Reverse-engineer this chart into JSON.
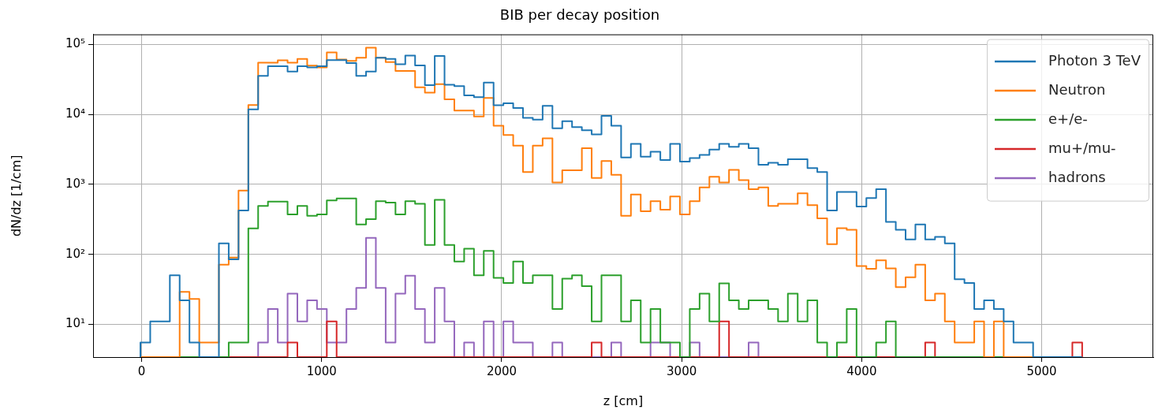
{
  "chart_data": {
    "type": "histogram",
    "title": "BIB per decay position",
    "xlabel": "z [cm]",
    "ylabel": "dN/dz [1/cm]",
    "bins": [
      -7,
      47.5,
      102,
      156.5,
      211,
      265.5,
      320,
      374.5,
      429,
      483.5,
      538,
      592.5,
      647,
      701.5,
      756,
      810.5,
      865,
      919.5,
      974,
      1028.5,
      1083,
      1137.5,
      1192,
      1246.5,
      1301,
      1355.5,
      1410,
      1464.5,
      1519,
      1573.5,
      1628,
      1682.5,
      1737,
      1791.5,
      1846,
      1900.5,
      1955,
      2009.5,
      2064,
      2118.5,
      2173,
      2227.5,
      2282,
      2336.5,
      2391,
      2445.5,
      2500,
      2554.5,
      2609,
      2663.5,
      2718,
      2772.5,
      2827,
      2881.5,
      2936,
      2990.5,
      3045,
      3099.5,
      3154,
      3208.5,
      3263,
      3317.5,
      3372,
      3426.5,
      3481,
      3535.5,
      3590,
      3644.5,
      3699,
      3753.5,
      3808,
      3862.5,
      3917,
      3971.5,
      4026,
      4080.5,
      4135,
      4189.5,
      4244,
      4298.5,
      4353,
      4407.5,
      4462,
      4516.5,
      4571,
      4625.5,
      4680,
      4734.5,
      4789,
      4843.5,
      4898,
      4952.5,
      5007,
      5061.5,
      5116,
      5170.5,
      5225
    ],
    "series": [
      {
        "name": "Photon 3 TeV",
        "color": "#1f77b4",
        "values": [
          5.5,
          11,
          11,
          50,
          22,
          5.5,
          null,
          null,
          143,
          85,
          424,
          11800,
          35400,
          48900,
          48900,
          41000,
          48900,
          46800,
          48900,
          59700,
          59700,
          54200,
          35400,
          41000,
          64600,
          61800,
          51900,
          69200,
          50100,
          26100,
          68100,
          26500,
          25400,
          18700,
          17600,
          28400,
          13500,
          14400,
          12300,
          8940,
          8410,
          13200,
          6310,
          7980,
          6590,
          5930,
          5160,
          9500,
          6880,
          2420,
          3800,
          2480,
          2930,
          2220,
          3800,
          2120,
          2380,
          2640,
          3140,
          3800,
          3430,
          3800,
          3280,
          1910,
          2030,
          1910,
          2280,
          2280,
          1710,
          1500,
          424,
          780,
          780,
          483,
          638,
          851,
          291,
          224,
          163,
          267,
          163,
          177,
          143,
          44,
          39,
          16.5,
          22,
          16.5,
          11,
          5.5,
          5.5,
          null,
          null,
          null,
          null,
          null
        ]
      },
      {
        "name": "Neutron",
        "color": "#ff7f0e",
        "values": [
          null,
          null,
          null,
          null,
          29,
          23,
          5.5,
          5.5,
          71,
          90,
          815,
          13600,
          54700,
          54700,
          59200,
          54700,
          61800,
          49800,
          46800,
          76900,
          60700,
          58200,
          64600,
          89900,
          64600,
          55700,
          41800,
          41800,
          24300,
          20500,
          27000,
          16400,
          11300,
          11300,
          9330,
          17200,
          6880,
          5070,
          3580,
          1500,
          3580,
          4530,
          1060,
          1590,
          1590,
          3280,
          1230,
          2160,
          1370,
          356,
          714,
          413,
          574,
          435,
          672,
          372,
          574,
          903,
          1280,
          1060,
          1610,
          1150,
          851,
          903,
          491,
          526,
          526,
          746,
          505,
          326,
          140,
          236,
          224,
          68,
          62,
          82,
          63,
          34,
          47,
          71,
          22,
          27.5,
          11,
          5.5,
          5.5,
          11,
          null,
          11,
          null,
          null,
          null,
          null,
          null,
          null,
          null,
          null
        ]
      },
      {
        "name": "e+/e-",
        "color": "#2ca02c",
        "values": [
          null,
          null,
          null,
          null,
          null,
          null,
          null,
          null,
          null,
          5.5,
          5.5,
          234,
          491,
          565,
          565,
          372,
          491,
          356,
          372,
          590,
          627,
          627,
          267,
          318,
          574,
          550,
          372,
          574,
          526,
          136,
          600,
          136,
          79,
          120,
          50,
          112,
          46,
          39,
          79,
          39,
          50,
          50,
          16.5,
          45,
          50,
          35,
          11,
          50,
          50,
          11,
          22,
          5.5,
          16.5,
          5.5,
          5.5,
          null,
          16.5,
          27.5,
          11,
          38.5,
          22,
          16.5,
          22,
          22,
          16.5,
          11,
          27.5,
          11,
          22,
          5.5,
          null,
          5.5,
          16.5,
          null,
          null,
          5.5,
          11,
          null,
          null,
          null,
          null,
          null,
          null,
          null,
          null,
          null,
          null,
          null,
          null,
          null,
          null,
          null,
          null,
          null,
          null,
          null
        ]
      },
      {
        "name": "mu+/mu-",
        "color": "#d62728",
        "values": [
          null,
          null,
          null,
          null,
          null,
          null,
          null,
          null,
          null,
          null,
          null,
          null,
          null,
          null,
          null,
          5.5,
          null,
          null,
          null,
          11,
          null,
          null,
          null,
          null,
          null,
          null,
          null,
          null,
          null,
          null,
          null,
          null,
          null,
          null,
          null,
          null,
          null,
          null,
          null,
          null,
          null,
          null,
          null,
          null,
          null,
          null,
          5.5,
          null,
          null,
          null,
          null,
          null,
          null,
          null,
          null,
          null,
          null,
          null,
          null,
          11,
          null,
          null,
          null,
          null,
          null,
          null,
          null,
          null,
          null,
          null,
          null,
          null,
          null,
          null,
          null,
          null,
          null,
          null,
          null,
          null,
          5.5,
          null,
          null,
          null,
          null,
          null,
          null,
          null,
          null,
          null,
          null,
          null,
          null,
          null,
          null,
          5.5
        ]
      },
      {
        "name": "hadrons",
        "color": "#9467bd",
        "values": [
          null,
          null,
          null,
          null,
          null,
          null,
          null,
          null,
          null,
          null,
          null,
          null,
          5.5,
          16.5,
          5.5,
          27.5,
          11,
          22,
          16.5,
          5.5,
          5.5,
          16.5,
          33,
          172,
          33,
          5.5,
          27.5,
          49.5,
          16.5,
          5.5,
          33,
          11,
          null,
          5.5,
          null,
          11,
          null,
          11,
          5.5,
          5.5,
          null,
          null,
          5.5,
          null,
          null,
          null,
          null,
          null,
          5.5,
          null,
          null,
          null,
          5.5,
          5.5,
          null,
          null,
          5.5,
          null,
          null,
          null,
          null,
          null,
          5.5,
          null,
          null,
          null,
          null,
          null,
          null,
          null,
          null,
          null,
          null,
          null,
          null,
          null,
          null,
          null,
          null,
          null,
          null,
          null,
          null,
          null,
          null,
          null,
          null,
          null,
          null,
          null,
          null,
          null,
          null,
          null,
          null,
          null
        ]
      }
    ],
    "xlim": [
      -270,
      5620
    ],
    "xticks": [
      0,
      1000,
      2000,
      3000,
      4000,
      5000
    ],
    "ylim": [
      3.4,
      139000
    ],
    "yticks": [
      {
        "value": 10,
        "label": "10¹"
      },
      {
        "value": 100,
        "label": "10²"
      },
      {
        "value": 1000,
        "label": "10³"
      },
      {
        "value": 10000,
        "label": "10⁴"
      },
      {
        "value": 100000,
        "label": "10⁵"
      }
    ],
    "log": true,
    "grid": true,
    "legend": "top right"
  }
}
